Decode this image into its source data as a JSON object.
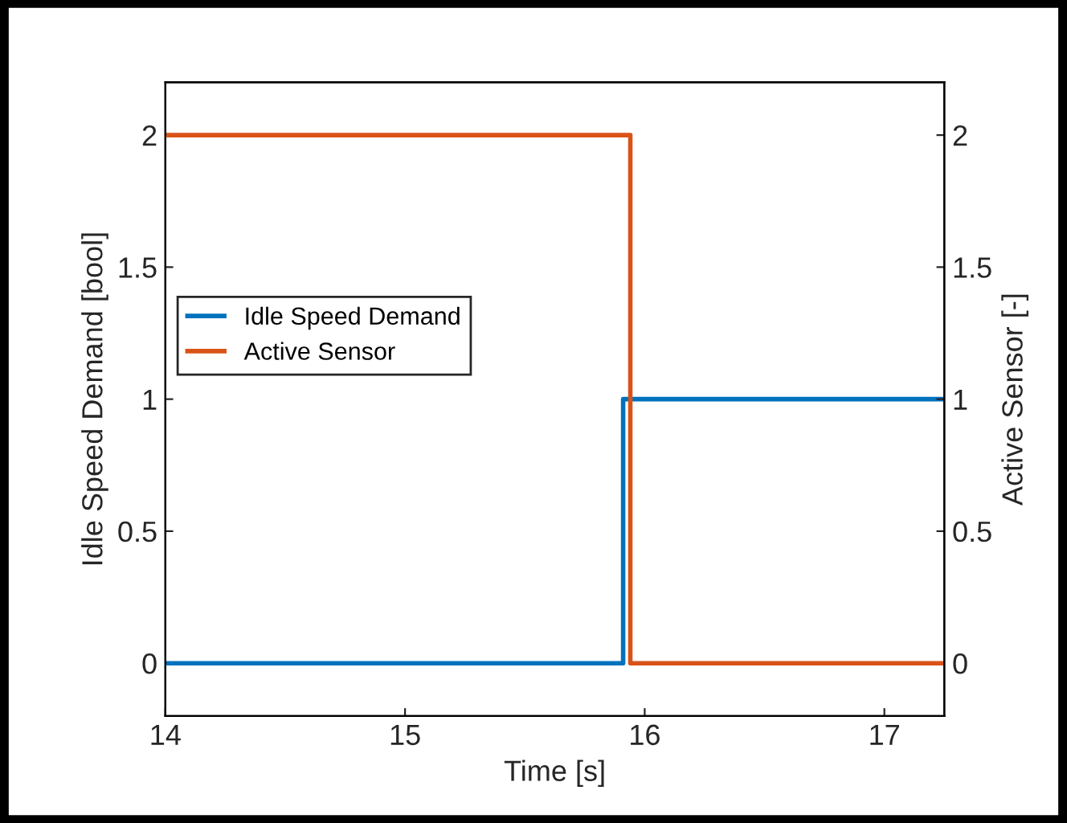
{
  "chart_data": {
    "type": "line",
    "xlabel": "Time [s]",
    "ylabel": "Idle Speed Demand [bool]",
    "y2label": "Active Sensor [-]",
    "xlim": [
      14,
      17.25
    ],
    "xticks": [
      14,
      15,
      16,
      17
    ],
    "ylim": [
      -0.2,
      2.2
    ],
    "yticks": [
      0,
      0.5,
      1,
      1.5,
      2
    ],
    "y2lim": [
      -0.2,
      2.2
    ],
    "y2ticks": [
      0,
      0.5,
      1,
      1.5,
      2
    ],
    "series": [
      {
        "name": "Idle Speed Demand",
        "color": "#0072bd",
        "x": [
          14,
          15.91,
          15.91,
          17.25
        ],
        "values": [
          0,
          0,
          1,
          1
        ]
      },
      {
        "name": "Active Sensor",
        "color": "#d95319",
        "axis": "y2",
        "x": [
          14,
          15.94,
          15.94,
          17.25
        ],
        "values": [
          2,
          2,
          0,
          0
        ]
      }
    ],
    "legend": "left",
    "grid": false,
    "line_style": "solid",
    "marker": "none"
  }
}
